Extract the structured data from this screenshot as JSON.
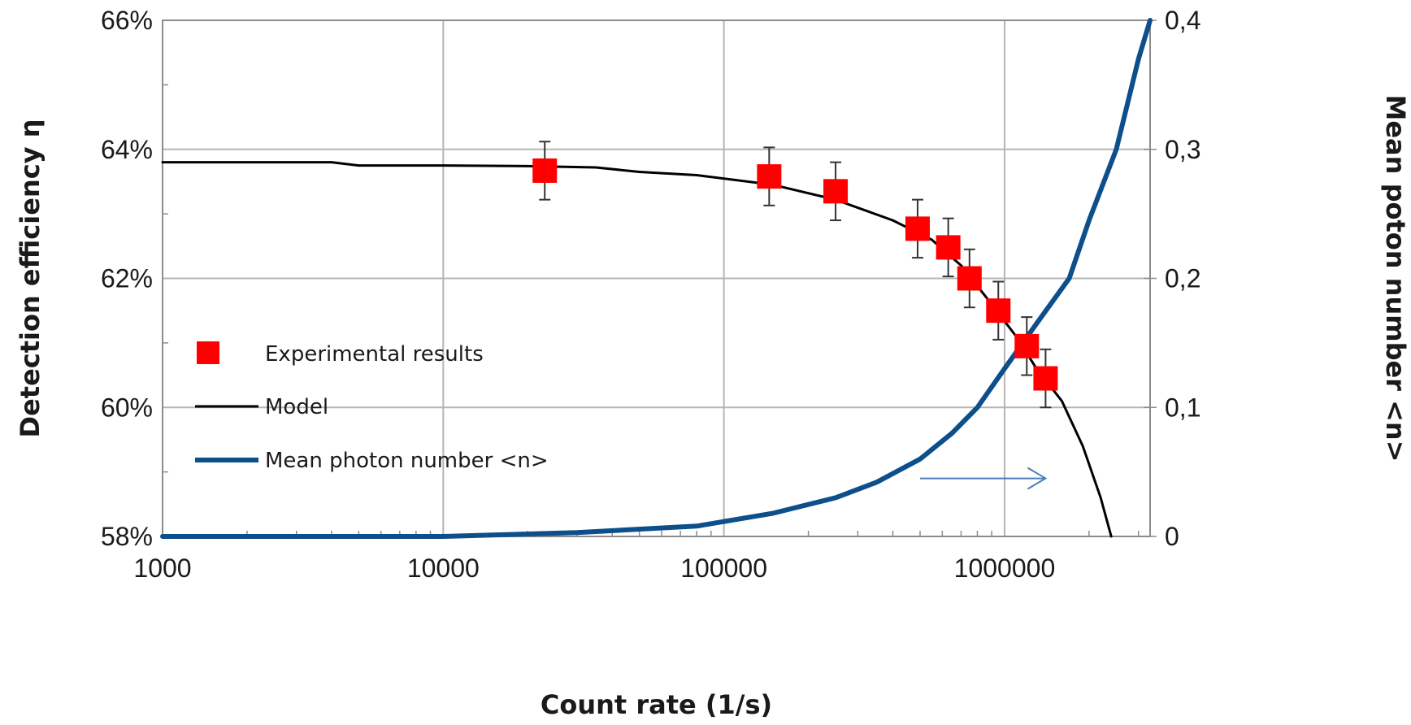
{
  "chart_data": {
    "type": "scatter",
    "title": "",
    "xlabel": "Count rate (1/s)",
    "ylabel": "Detection efficiency η",
    "y2label": "Mean poton number <n>",
    "x_scale": "log",
    "xlim": [
      1000,
      3300000
    ],
    "ylim": [
      0.58,
      0.66
    ],
    "y2lim": [
      0,
      0.4
    ],
    "grid": true,
    "legend_position": "left-middle",
    "x_ticks": [
      {
        "value": 1000,
        "label": "1000"
      },
      {
        "value": 10000,
        "label": "10000"
      },
      {
        "value": 100000,
        "label": "100000"
      },
      {
        "value": 1000000,
        "label": "1000000"
      }
    ],
    "y_ticks": [
      {
        "value": 0.58,
        "label": "58%"
      },
      {
        "value": 0.6,
        "label": "60%"
      },
      {
        "value": 0.62,
        "label": "62%"
      },
      {
        "value": 0.64,
        "label": "64%"
      },
      {
        "value": 0.66,
        "label": "66%"
      }
    ],
    "y2_ticks": [
      {
        "value": 0,
        "label": "0"
      },
      {
        "value": 0.1,
        "label": "0,1"
      },
      {
        "value": 0.2,
        "label": "0,2"
      },
      {
        "value": 0.3,
        "label": "0,3"
      },
      {
        "value": 0.4,
        "label": "0,4"
      }
    ],
    "series": [
      {
        "name": "Experimental results",
        "kind": "scatter",
        "color": "#ff0000",
        "axis": "left",
        "points": [
          {
            "x": 23000,
            "y": 0.6367,
            "err": 0.0045
          },
          {
            "x": 145000,
            "y": 0.6358,
            "err": 0.0045
          },
          {
            "x": 250000,
            "y": 0.6335,
            "err": 0.0045
          },
          {
            "x": 490000,
            "y": 0.6277,
            "err": 0.0045
          },
          {
            "x": 630000,
            "y": 0.6248,
            "err": 0.0045
          },
          {
            "x": 750000,
            "y": 0.62,
            "err": 0.0045
          },
          {
            "x": 950000,
            "y": 0.615,
            "err": 0.0045
          },
          {
            "x": 1200000,
            "y": 0.6095,
            "err": 0.0045
          },
          {
            "x": 1400000,
            "y": 0.6045,
            "err": 0.0045
          }
        ]
      },
      {
        "name": "Model",
        "kind": "line",
        "color": "#000000",
        "axis": "left",
        "points": [
          {
            "x": 1000,
            "y": 0.638
          },
          {
            "x": 4000,
            "y": 0.638
          },
          {
            "x": 5000,
            "y": 0.6375
          },
          {
            "x": 10000,
            "y": 0.6375
          },
          {
            "x": 20000,
            "y": 0.6374
          },
          {
            "x": 35000,
            "y": 0.6372
          },
          {
            "x": 50000,
            "y": 0.6365
          },
          {
            "x": 80000,
            "y": 0.636
          },
          {
            "x": 150000,
            "y": 0.6345
          },
          {
            "x": 250000,
            "y": 0.6322
          },
          {
            "x": 400000,
            "y": 0.629
          },
          {
            "x": 550000,
            "y": 0.626
          },
          {
            "x": 700000,
            "y": 0.622
          },
          {
            "x": 900000,
            "y": 0.616
          },
          {
            "x": 1100000,
            "y": 0.611
          },
          {
            "x": 1300000,
            "y": 0.606
          },
          {
            "x": 1600000,
            "y": 0.601
          },
          {
            "x": 1900000,
            "y": 0.594
          },
          {
            "x": 2200000,
            "y": 0.586
          },
          {
            "x": 2400000,
            "y": 0.58
          }
        ]
      },
      {
        "name": "Mean photon number <n>",
        "kind": "line",
        "color": "#0d4f8b",
        "axis": "right",
        "points": [
          {
            "x": 1000,
            "y": 0.0
          },
          {
            "x": 10000,
            "y": 0.0
          },
          {
            "x": 30000,
            "y": 0.003
          },
          {
            "x": 80000,
            "y": 0.008
          },
          {
            "x": 150000,
            "y": 0.018
          },
          {
            "x": 250000,
            "y": 0.03
          },
          {
            "x": 350000,
            "y": 0.042
          },
          {
            "x": 500000,
            "y": 0.06
          },
          {
            "x": 650000,
            "y": 0.08
          },
          {
            "x": 800000,
            "y": 0.1
          },
          {
            "x": 1000000,
            "y": 0.13
          },
          {
            "x": 1300000,
            "y": 0.165
          },
          {
            "x": 1700000,
            "y": 0.2
          },
          {
            "x": 2000000,
            "y": 0.245
          },
          {
            "x": 2500000,
            "y": 0.3
          },
          {
            "x": 3000000,
            "y": 0.37
          },
          {
            "x": 3300000,
            "y": 0.4
          }
        ]
      }
    ],
    "annotations": [
      {
        "type": "arrow",
        "direction": "right",
        "color": "#4a7ab8",
        "axis": "right",
        "x_start": 500000,
        "x_end": 1400000,
        "y": 0.045,
        "meaning": "refers to right axis"
      }
    ]
  }
}
